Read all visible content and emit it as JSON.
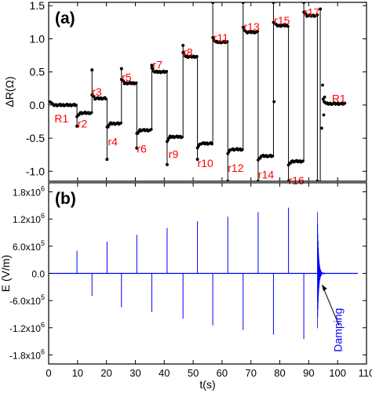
{
  "chart_data": [
    {
      "panel_label": "(a)",
      "type": "scatter",
      "ylabel": "ΔR(Ω)",
      "xlim": [
        0,
        110
      ],
      "ylim": [
        -1.15,
        1.55
      ],
      "xticks": [
        0,
        10,
        20,
        30,
        40,
        50,
        60,
        70,
        80,
        90,
        100,
        110
      ],
      "yticks": [
        -1.0,
        -0.5,
        0.0,
        0.5,
        1.0,
        1.5
      ],
      "ytick_labels": [
        "-1.0",
        "-0.5",
        "0.0",
        "0.5",
        "1.0",
        "1.5"
      ],
      "label_color": "#ff0000",
      "data_color": "#000000",
      "levels": [
        {
          "label": "R1",
          "x_start": 0.5,
          "x_end": 9.5,
          "value": 0.0
        },
        {
          "label": "r2",
          "x_start": 9.8,
          "x_end": 14.8,
          "value": -0.12
        },
        {
          "label": "r3",
          "x_start": 15.0,
          "x_end": 19.8,
          "value": 0.1
        },
        {
          "label": "r4",
          "x_start": 20.2,
          "x_end": 25.0,
          "value": -0.28
        },
        {
          "label": "r5",
          "x_start": 25.2,
          "x_end": 30.3,
          "value": 0.33
        },
        {
          "label": "r6",
          "x_start": 30.5,
          "x_end": 35.5,
          "value": -0.38
        },
        {
          "label": "r7",
          "x_start": 35.7,
          "x_end": 40.8,
          "value": 0.5
        },
        {
          "label": "r9",
          "x_start": 41.0,
          "x_end": 46.2,
          "value": -0.48
        },
        {
          "label": "r8",
          "x_start": 46.5,
          "x_end": 51.3,
          "value": 0.73
        },
        {
          "label": "r10",
          "x_start": 51.5,
          "x_end": 56.5,
          "value": -0.58
        },
        {
          "label": "r11",
          "x_start": 56.8,
          "x_end": 61.8,
          "value": 0.95
        },
        {
          "label": "r12",
          "x_start": 62.0,
          "x_end": 67.0,
          "value": -0.67
        },
        {
          "label": "r13",
          "x_start": 67.3,
          "x_end": 72.3,
          "value": 1.1
        },
        {
          "label": "r14",
          "x_start": 72.5,
          "x_end": 77.5,
          "value": -0.77
        },
        {
          "label": "r15",
          "x_start": 77.8,
          "x_end": 82.8,
          "value": 1.2
        },
        {
          "label": "r16",
          "x_start": 83.0,
          "x_end": 88.0,
          "value": -0.85
        },
        {
          "label": "r17",
          "x_start": 88.3,
          "x_end": 93.0,
          "value": 1.35
        },
        {
          "label": "R1",
          "x_start": 95.0,
          "x_end": 102.5,
          "value": 0.02
        }
      ],
      "transitions": [
        {
          "x": 9.8,
          "from": 0.0,
          "to": -0.32
        },
        {
          "x": 15.0,
          "from": -0.12,
          "to": 0.53
        },
        {
          "x": 20.2,
          "from": 0.1,
          "to": -0.82
        },
        {
          "x": 25.2,
          "from": -0.28,
          "to": 0.55
        },
        {
          "x": 30.5,
          "from": 0.33,
          "to": -0.65
        },
        {
          "x": 35.7,
          "from": -0.38,
          "to": 0.6
        },
        {
          "x": 41.0,
          "from": 0.5,
          "to": -0.9
        },
        {
          "x": 46.5,
          "from": -0.48,
          "to": 0.9
        },
        {
          "x": 51.5,
          "from": 0.73,
          "to": -0.82
        },
        {
          "x": 56.8,
          "from": -0.58,
          "to": 1.55
        },
        {
          "x": 62.0,
          "from": 0.95,
          "to": -1.15
        },
        {
          "x": 67.3,
          "from": -0.67,
          "to": 1.55
        },
        {
          "x": 72.5,
          "from": 1.1,
          "to": -1.15
        },
        {
          "x": 77.8,
          "from": -0.77,
          "to": 1.55
        },
        {
          "x": 83.0,
          "from": 1.2,
          "to": -1.15
        },
        {
          "x": 88.3,
          "from": -0.85,
          "to": 1.55
        },
        {
          "x": 93.0,
          "from": 1.35,
          "to": -1.15
        },
        {
          "x": 94.0,
          "from": -1.15,
          "to": 1.45
        }
      ],
      "settling_points": [
        {
          "x": 94.5,
          "y": -0.35
        },
        {
          "x": 94.8,
          "y": 0.3
        },
        {
          "x": 95.2,
          "y": -0.15
        },
        {
          "x": 95.5,
          "y": 0.12
        },
        {
          "x": 78.0,
          "y": 0.05
        }
      ]
    },
    {
      "panel_label": "(b)",
      "type": "line",
      "xlabel": "t(s)",
      "ylabel": "E (V/m)",
      "xlim": [
        0,
        110
      ],
      "ylim": [
        -2000000,
        2000000
      ],
      "xticks": [
        0,
        10,
        20,
        30,
        40,
        50,
        60,
        70,
        80,
        90,
        100,
        110
      ],
      "xtick_labels": [
        "0",
        "10",
        "20",
        "30",
        "40",
        "50",
        "60",
        "70",
        "80",
        "90",
        "100",
        "110"
      ],
      "yticks": [
        -1800000,
        -1200000,
        -600000,
        0,
        600000,
        1200000,
        1800000
      ],
      "ytick_labels": [
        {
          "mantissa": "-1.8x10",
          "exp": "6"
        },
        {
          "mantissa": "-1.2x10",
          "exp": "6"
        },
        {
          "mantissa": "-6.0x10",
          "exp": "5"
        },
        {
          "mantissa": "0.0",
          "exp": ""
        },
        {
          "mantissa": "6.0x10",
          "exp": "5"
        },
        {
          "mantissa": "1.2x10",
          "exp": "6"
        },
        {
          "mantissa": "1.8x10",
          "exp": "6"
        }
      ],
      "color": "#0000ff",
      "baseline_x": [
        0.5,
        107
      ],
      "spikes": [
        {
          "t": 9.8,
          "value": 500000
        },
        {
          "t": 15.0,
          "value": -500000
        },
        {
          "t": 20.2,
          "value": 700000
        },
        {
          "t": 25.2,
          "value": -750000
        },
        {
          "t": 30.5,
          "value": 850000
        },
        {
          "t": 35.7,
          "value": -850000
        },
        {
          "t": 41.0,
          "value": 1000000
        },
        {
          "t": 46.5,
          "value": -1000000
        },
        {
          "t": 51.5,
          "value": 1150000
        },
        {
          "t": 56.8,
          "value": -1150000
        },
        {
          "t": 62.0,
          "value": 1250000
        },
        {
          "t": 67.3,
          "value": -1250000
        },
        {
          "t": 72.5,
          "value": 1350000
        },
        {
          "t": 77.8,
          "value": -1350000
        },
        {
          "t": 83.0,
          "value": 1450000
        },
        {
          "t": 88.3,
          "value": -1450000
        }
      ],
      "damping": {
        "t_start": 93.0,
        "t_end": 95.5,
        "peak": 1350000,
        "label": "Damping"
      }
    }
  ]
}
